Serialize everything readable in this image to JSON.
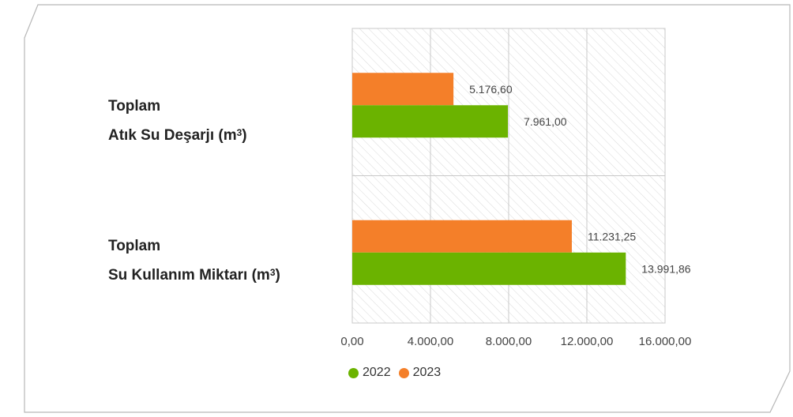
{
  "chart_data": {
    "type": "bar",
    "orientation": "horizontal",
    "categories": [
      {
        "line1": "Toplam",
        "line2": "Atık Su Deşarjı (m",
        "sup": "3",
        "close": ")"
      },
      {
        "line1": "Toplam",
        "line2": "Su Kullanım Miktarı (m",
        "sup": "3",
        "close": ")"
      }
    ],
    "series": [
      {
        "name": "2023",
        "color": "#f47f29",
        "values": [
          5176.6,
          11231.25
        ],
        "labels": [
          "5.176,60",
          "11.231,25"
        ]
      },
      {
        "name": "2022",
        "color": "#6bb300",
        "values": [
          7961.0,
          13991.86
        ],
        "labels": [
          "7.961,00",
          "13.991,86"
        ]
      }
    ],
    "xlim": [
      0,
      16000
    ],
    "xticks": [
      {
        "value": 0,
        "label": "0,00"
      },
      {
        "value": 4000,
        "label": "4.000,00"
      },
      {
        "value": 8000,
        "label": "8.000,00"
      },
      {
        "value": 12000,
        "label": "12.000,00"
      },
      {
        "value": 16000,
        "label": "16.000,00"
      }
    ],
    "grid": true,
    "legend": {
      "placement": "bottom",
      "items": [
        {
          "name": "2022",
          "color": "#6bb300"
        },
        {
          "name": "2023",
          "color": "#f47f29"
        }
      ]
    }
  }
}
